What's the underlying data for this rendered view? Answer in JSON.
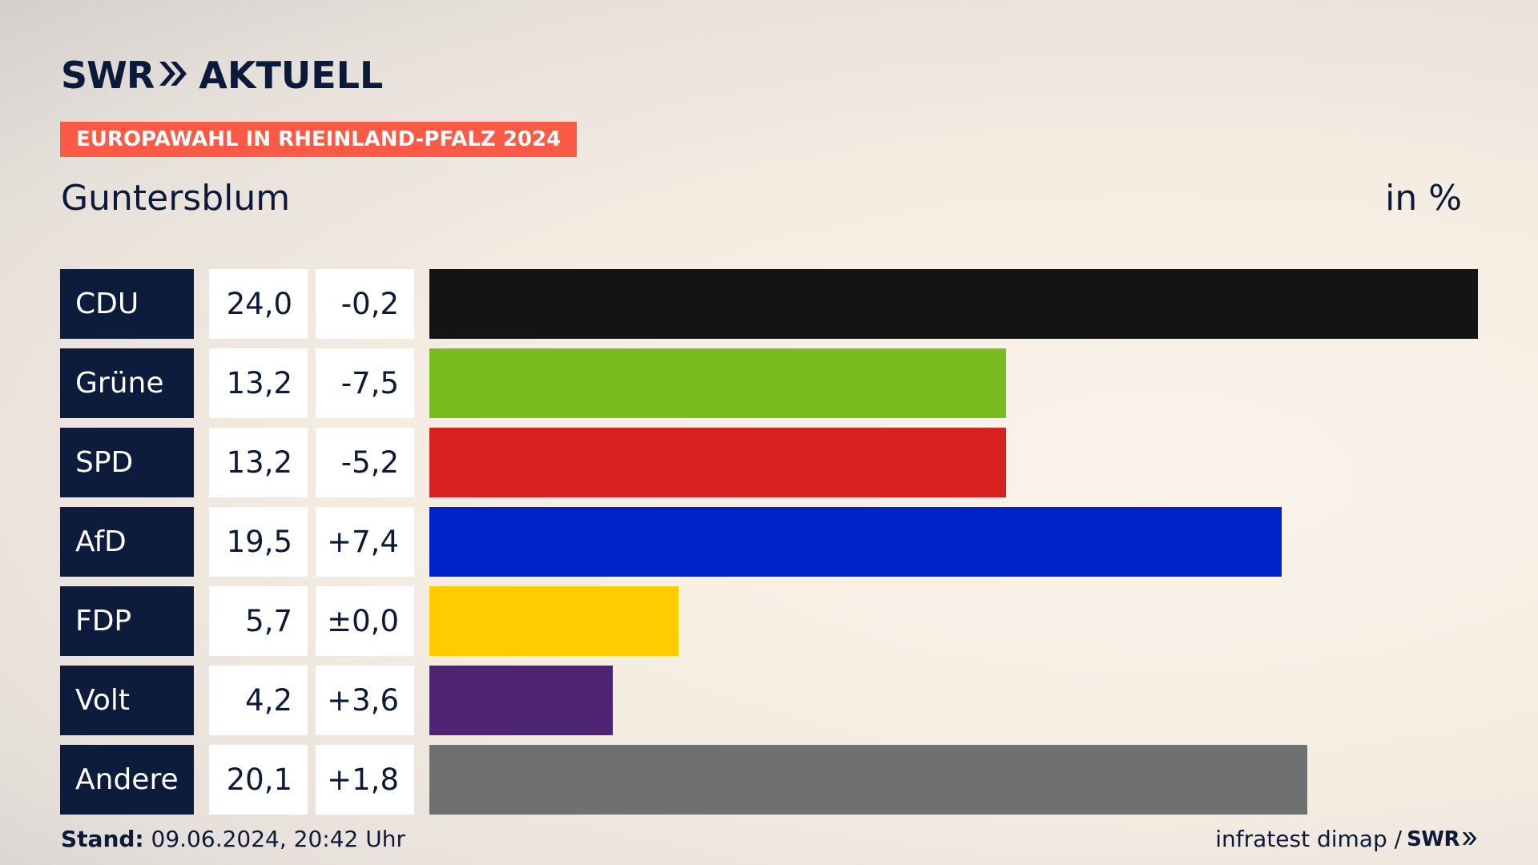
{
  "header": {
    "brand": "SWR",
    "brand_suffix": "AKTUELL",
    "tag": "EUROPAWAHL IN RHEINLAND-PFALZ 2024",
    "location": "Guntersblum",
    "unit": "in %"
  },
  "chart_data": {
    "type": "bar",
    "orientation": "horizontal",
    "categories": [
      "CDU",
      "Grüne",
      "SPD",
      "AfD",
      "FDP",
      "Volt",
      "Andere"
    ],
    "values": [
      24.0,
      13.2,
      13.2,
      19.5,
      5.7,
      4.2,
      20.1
    ],
    "value_labels": [
      "24,0",
      "13,2",
      "13,2",
      "19,5",
      "5,7",
      "4,2",
      "20,1"
    ],
    "diff_labels": [
      "-0,2",
      "-7,5",
      "-5,2",
      "+7,4",
      "±0,0",
      "+3,6",
      "+1,8"
    ],
    "colors": [
      "#141414",
      "#78bd1e",
      "#d72020",
      "#0022c9",
      "#ffcc00",
      "#4f2473",
      "#6f7072"
    ],
    "xlim": [
      0,
      24.0
    ],
    "unit": "%",
    "grid": false,
    "legend": "none"
  },
  "footer": {
    "stand_label": "Stand:",
    "stand_value": "09.06.2024, 20:42 Uhr",
    "source": "infratest dimap /",
    "source_brand": "SWR"
  }
}
